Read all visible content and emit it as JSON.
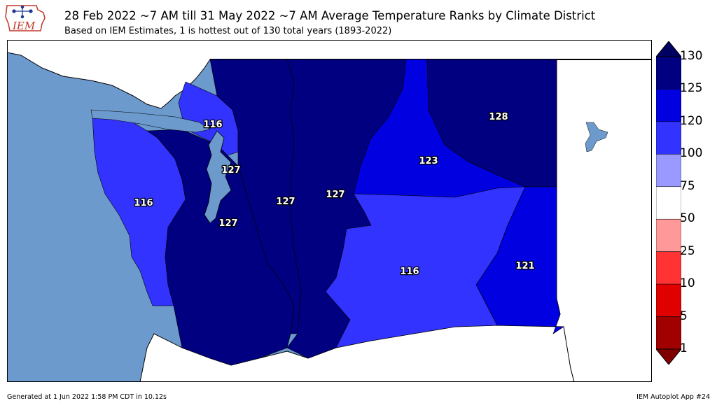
{
  "header": {
    "logo_text": "IEM",
    "title": "28 Feb 2022 ~7 AM till 31 May 2022 ~7 AM Average Temperature Ranks by Climate District",
    "subtitle": "Based on IEM Estimates, 1 is hottest out of 130 total years (1893-2022)"
  },
  "map": {
    "region": "Washington",
    "districts": [
      {
        "id": "north-cascades-west",
        "rank": "127",
        "color": "#000080"
      },
      {
        "id": "olympic-coast",
        "rank": "116",
        "color": "#3333ff"
      },
      {
        "id": "puget-sound",
        "rank": "127",
        "color": "#000080"
      },
      {
        "id": "north-cascades",
        "rank": "127",
        "color": "#000080"
      },
      {
        "id": "east-slope-cascades",
        "rank": "127",
        "color": "#000080"
      },
      {
        "id": "central-plains",
        "rank": "116",
        "color": "#3333ff"
      },
      {
        "id": "okanogan-big-bend",
        "rank": "123",
        "color": "#0000e0"
      },
      {
        "id": "northeastern",
        "rank": "128",
        "color": "#000080"
      },
      {
        "id": "southeastern",
        "rank": "121",
        "color": "#0000e0"
      },
      {
        "id": "puget-sound-north",
        "rank": "116",
        "color": "#3333ff"
      }
    ],
    "colors": {
      "ocean": "#6c9acd",
      "land": "#ffffff",
      "border": "#000000"
    }
  },
  "colorbar": {
    "ticks": [
      "130",
      "125",
      "120",
      "100",
      "75",
      "50",
      "25",
      "10",
      "5",
      "1"
    ],
    "colors": [
      "#000080",
      "#0000e0",
      "#3333ff",
      "#9999ff",
      "#ffffff",
      "#ff9999",
      "#ff3333",
      "#e00000",
      "#a00000"
    ],
    "extend_colors": {
      "top": "#000060",
      "bottom": "#800000"
    }
  },
  "footer": {
    "generated": "Generated at 1 Jun 2022 1:58 PM CDT in 10.12s",
    "app": "IEM Autoplot App #24"
  }
}
